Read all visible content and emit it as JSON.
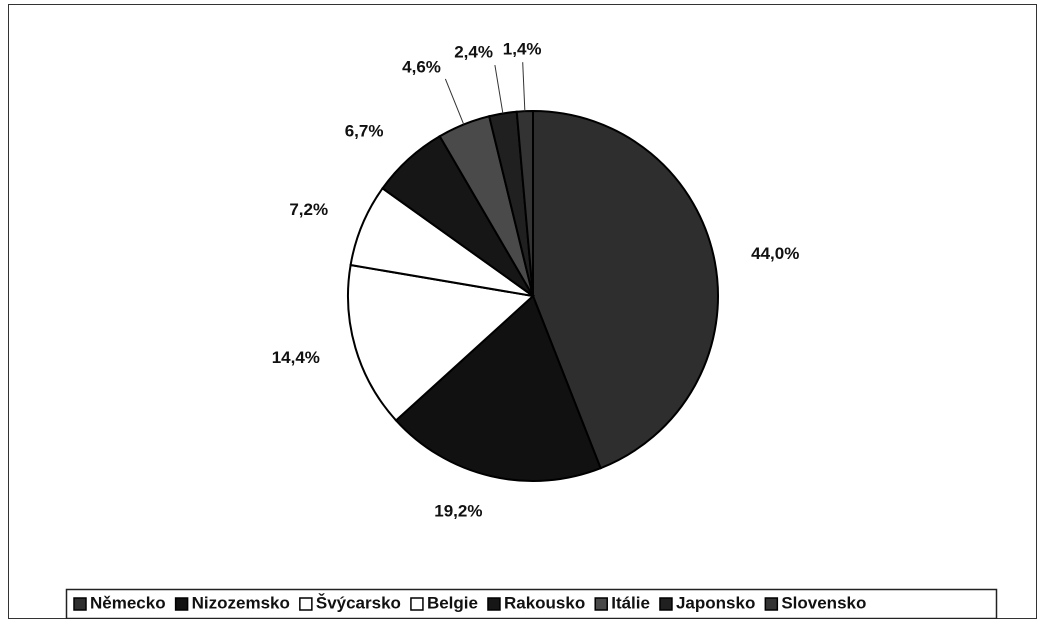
{
  "chart_data": {
    "type": "pie",
    "categories": [
      "Německo",
      "Nizozemsko",
      "Švýcarsko",
      "Belgie",
      "Rakousko",
      "Itálie",
      "Japonsko",
      "Slovensko"
    ],
    "values": [
      44.0,
      19.2,
      14.4,
      7.2,
      6.7,
      4.6,
      2.4,
      1.4
    ],
    "value_labels": [
      "44,0%",
      "19,2%",
      "14,4%",
      "7,2%",
      "6,7%",
      "4,6%",
      "2,4%",
      "1,4%"
    ],
    "colors": [
      "#2e2e2e",
      "#111111",
      "#ffffff",
      "#ffffff",
      "#161616",
      "#4a4a4a",
      "#202020",
      "#333333"
    ],
    "legend": "bottom"
  }
}
